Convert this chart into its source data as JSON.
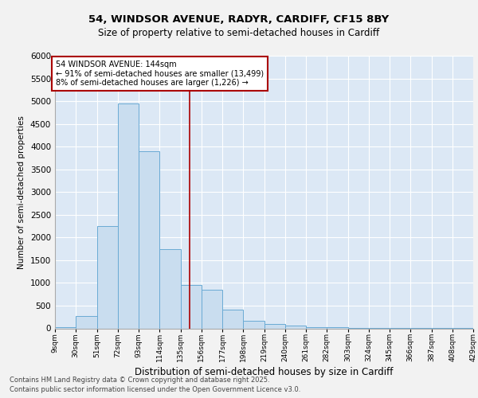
{
  "title1": "54, WINDSOR AVENUE, RADYR, CARDIFF, CF15 8BY",
  "title2": "Size of property relative to semi-detached houses in Cardiff",
  "xlabel": "Distribution of semi-detached houses by size in Cardiff",
  "ylabel": "Number of semi-detached properties",
  "footer1": "Contains HM Land Registry data © Crown copyright and database right 2025.",
  "footer2": "Contains public sector information licensed under the Open Government Licence v3.0.",
  "annotation_text": "54 WINDSOR AVENUE: 144sqm\n← 91% of semi-detached houses are smaller (13,499)\n8% of semi-detached houses are larger (1,226) →",
  "bins": [
    9,
    30,
    51,
    72,
    93,
    114,
    135,
    156,
    177,
    198,
    219,
    240,
    261,
    282,
    303,
    324,
    345,
    366,
    387,
    408,
    429
  ],
  "bin_labels": [
    "9sqm",
    "30sqm",
    "51sqm",
    "72sqm",
    "93sqm",
    "114sqm",
    "135sqm",
    "156sqm",
    "177sqm",
    "198sqm",
    "219sqm",
    "240sqm",
    "261sqm",
    "282sqm",
    "303sqm",
    "324sqm",
    "345sqm",
    "366sqm",
    "387sqm",
    "408sqm",
    "429sqm"
  ],
  "counts": [
    30,
    270,
    2250,
    4950,
    3900,
    1750,
    950,
    850,
    420,
    170,
    100,
    60,
    30,
    20,
    10,
    5,
    3,
    2,
    1,
    1
  ],
  "bar_color": "#c9ddef",
  "bar_edge_color": "#6aaad4",
  "vline_color": "#aa0000",
  "vline_x": 144,
  "box_edge_color": "#aa0000",
  "background_color": "#dce8f5",
  "grid_color": "#ffffff",
  "fig_background": "#f2f2f2",
  "ylim": [
    0,
    6000
  ],
  "yticks": [
    0,
    500,
    1000,
    1500,
    2000,
    2500,
    3000,
    3500,
    4000,
    4500,
    5000,
    5500,
    6000
  ]
}
